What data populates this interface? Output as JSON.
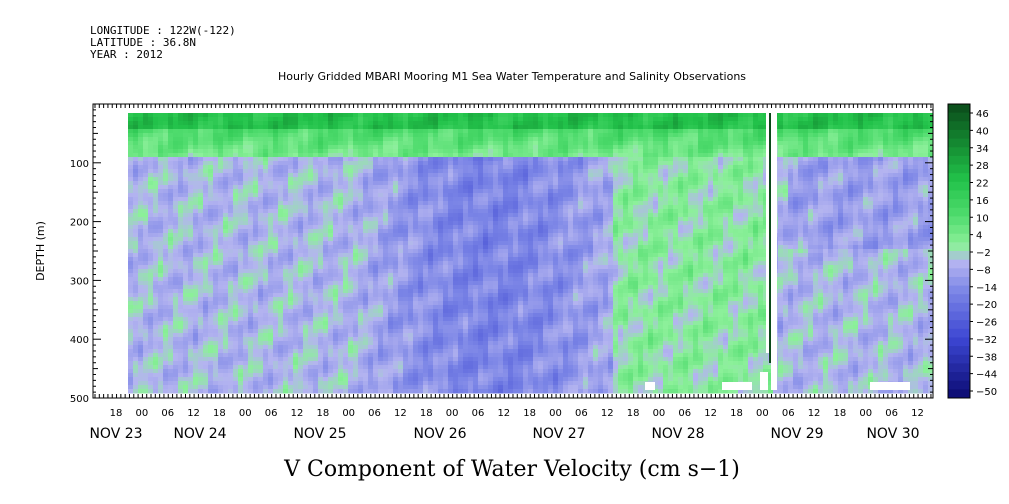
{
  "header": {
    "longitude": "LONGITUDE : 122W(-122)",
    "latitude": "LATITUDE : 36.8N",
    "year": "YEAR : 2012"
  },
  "chart_data": {
    "type": "heatmap",
    "title": "Hourly Gridded MBARI Mooring M1 Sea Water Temperature and Salinity Observations",
    "xlabel": "V Component of Water Velocity (cm s−1)",
    "ylabel": "DEPTH (m)",
    "ylim": [
      500,
      0
    ],
    "y_ticks": [
      100,
      200,
      300,
      400,
      500
    ],
    "x_hour_labels": [
      "18",
      "00",
      "06",
      "12",
      "18",
      "00",
      "06",
      "12",
      "18",
      "00",
      "06",
      "12",
      "18",
      "00",
      "06",
      "12",
      "18",
      "00",
      "06",
      "12",
      "18",
      "00",
      "06",
      "12",
      "18",
      "00",
      "06",
      "12",
      "18",
      "00",
      "06",
      "12"
    ],
    "x_day_labels": [
      "NOV 23",
      "NOV 24",
      "NOV 25",
      "NOV 26",
      "NOV 27",
      "NOV 28",
      "NOV 29",
      "NOV 30"
    ],
    "colorbar_labels": [
      "46",
      "40",
      "34",
      "28",
      "22",
      "16",
      "10",
      "4",
      "−2",
      "−8",
      "−14",
      "−20",
      "−26",
      "−32",
      "−38",
      "−44",
      "−50"
    ],
    "colorbar_range": [
      -50,
      50
    ],
    "colors": {
      "dark_green": "#0b4a1a",
      "mid_green": "#22c24a",
      "light_green": "#8cf09a",
      "light_blue": "#b4b4f0",
      "mid_blue": "#7a84e6",
      "dark_blue": "#0a0a70"
    }
  }
}
